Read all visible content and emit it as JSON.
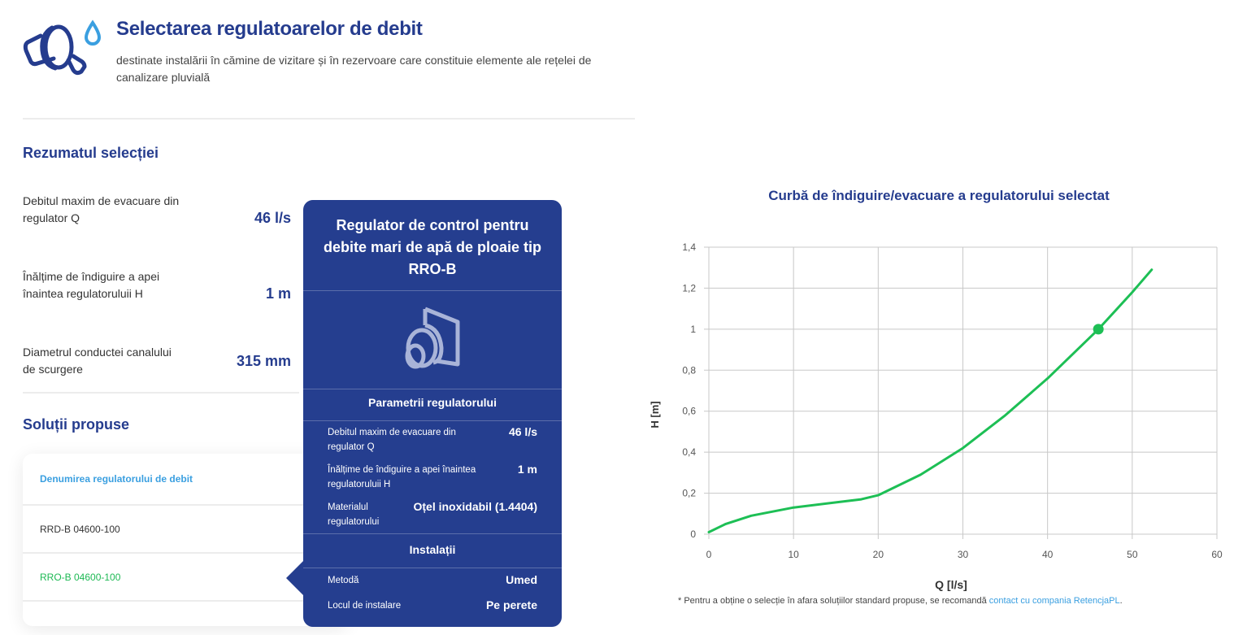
{
  "header": {
    "logo_icon": "flow-regulator-water-drop-icon",
    "title": "Selectarea regulatoarelor de debit",
    "subtitle": "destinate instalării în cămine de vizitare și în rezervoare care constituie elemente ale rețelei de canalizare pluvială"
  },
  "summary": {
    "title": "Rezumatul selecției",
    "rows": [
      {
        "label": "Debitul maxim de evacuare din regulator Q",
        "value": "46 l/s"
      },
      {
        "label": "Înălțime de îndiguire a apei înaintea regulatoruluii H",
        "value": "1 m"
      },
      {
        "label": "Diametrul conductei canalului de scurgere",
        "value": "315 mm"
      }
    ]
  },
  "solutions": {
    "title": "Soluții propuse",
    "column_header": "Denumirea regulatorului de debit",
    "rows": [
      {
        "name": "RRD-B 04600-100",
        "selected": false
      },
      {
        "name": "RRO-B 04600-100",
        "selected": true
      }
    ]
  },
  "popup": {
    "title": "Regulator de control pentru debite mari de apă de ploaie tip RRO-B",
    "image_icon": "regulator-product-icon",
    "params_title": "Parametrii regulatorului",
    "params": [
      {
        "label": "Debitul maxim de evacuare din regulator Q",
        "value": "46 l/s"
      },
      {
        "label": "Înălțime de îndiguire a apei înaintea regulatoruluii H",
        "value": "1 m"
      },
      {
        "label": "Materialul regulatorului",
        "value": "Oțel inoxidabil (1.4404)"
      }
    ],
    "install_title": "Instalații",
    "install": [
      {
        "label": "Metodă",
        "value": "Umed"
      },
      {
        "label": "Locul de instalare",
        "value": "Pe perete"
      }
    ]
  },
  "chart": {
    "footnote_prefix": "* Pentru a obține o selecție în afara soluțiilor standard propuse, se recomandă ",
    "footnote_link": "contact cu compania RetencjaPL",
    "footnote_suffix": "."
  },
  "colors": {
    "brand_navy": "#253e8f",
    "accent_blue": "#3a9fe0",
    "curve_green": "#1dbf55"
  },
  "chart_data": {
    "type": "line",
    "title": "Curbă de îndiguire/evacuare a regulatorului selectat",
    "xlabel": "Q [l/s]",
    "ylabel": "H [m]",
    "xlim": [
      0,
      60
    ],
    "ylim": [
      0,
      1.4
    ],
    "x_ticks": [
      "0",
      "10",
      "20",
      "30",
      "40",
      "50",
      "60"
    ],
    "y_ticks": [
      "0",
      "0,2",
      "0,4",
      "0,6",
      "0,8",
      "1",
      "1,2",
      "1,4"
    ],
    "grid": true,
    "series": [
      {
        "name": "RRO-B 04600-100",
        "x": [
          0,
          2,
          5,
          10,
          15,
          18,
          20,
          25,
          30,
          35,
          40,
          46,
          50,
          52.3
        ],
        "y": [
          0.01,
          0.05,
          0.09,
          0.13,
          0.155,
          0.17,
          0.19,
          0.29,
          0.42,
          0.58,
          0.76,
          1.0,
          1.18,
          1.29
        ]
      }
    ],
    "highlight_point": {
      "x": 46,
      "y": 1.0
    }
  }
}
